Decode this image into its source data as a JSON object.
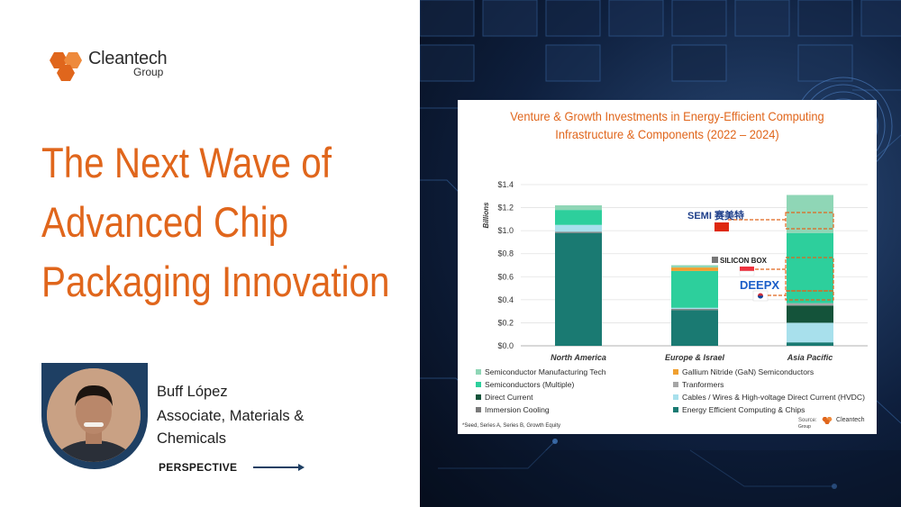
{
  "brand": {
    "name": "Cleantech",
    "sub": "Group",
    "colors": {
      "orange": "#e0661c",
      "navy": "#1e3f63"
    }
  },
  "headline": {
    "line1": "The Next Wave of",
    "line2": "Advanced Chip",
    "line3": "Packaging Innovation"
  },
  "author": {
    "name": "Buff López",
    "role": "Associate, Materials & Chemicals"
  },
  "tag": "PERSPECTIVE",
  "chart_data": {
    "type": "bar",
    "stacked": true,
    "title_line1": "Venture & Growth Investments in Energy-Efficient Computing",
    "title_line2": "Infrastructure & Components (2022 – 2024)",
    "ylabel": "Billions",
    "ylim": [
      0,
      1.4
    ],
    "yticks": [
      "$0.0",
      "$0.2",
      "$0.4",
      "$0.6",
      "$0.8",
      "$1.0",
      "$1.2",
      "$1.4"
    ],
    "categories": [
      "North America",
      "Europe & Israel",
      "Asia Pacific"
    ],
    "series": [
      {
        "name": "Energy Efficient Computing & Chips",
        "color": "#1a7a72",
        "values": [
          0.98,
          0.31,
          0.03
        ]
      },
      {
        "name": "Immersion Cooling",
        "color": "#7a7a7a",
        "values": [
          0.01,
          0.01,
          0.0
        ]
      },
      {
        "name": "Cables / Wires & High-voltage Direct Current (HVDC)",
        "color": "#a8e0ec",
        "values": [
          0.06,
          0.01,
          0.17
        ]
      },
      {
        "name": "Direct Current",
        "color": "#14533a",
        "values": [
          0.0,
          0.0,
          0.15
        ]
      },
      {
        "name": "Tranformers",
        "color": "#a6a6a6",
        "values": [
          0.0,
          0.0,
          0.02
        ]
      },
      {
        "name": "Semiconductors (Multiple)",
        "color": "#2dcf9c",
        "values": [
          0.13,
          0.32,
          0.61
        ]
      },
      {
        "name": "Gallium Nitride (GaN) Semiconductors",
        "color": "#f0a030",
        "values": [
          0.0,
          0.03,
          0.0
        ]
      },
      {
        "name": "Semiconductor Manufacturing Tech",
        "color": "#8fd6b6",
        "values": [
          0.04,
          0.02,
          0.33
        ]
      }
    ],
    "legend_order": [
      7,
      6,
      5,
      4,
      3,
      2,
      1,
      0
    ],
    "annotations": [
      {
        "label": "SEMI 赛美特",
        "country": "China"
      },
      {
        "label": "SILICON BOX",
        "country": "Singapore"
      },
      {
        "label": "DEEPX",
        "country": "South Korea"
      }
    ],
    "footnote": "*Seed, Series A, Series B, Growth Equity",
    "source_label": "Source:",
    "source_brand": "Cleantech",
    "source_sub": "Group"
  }
}
